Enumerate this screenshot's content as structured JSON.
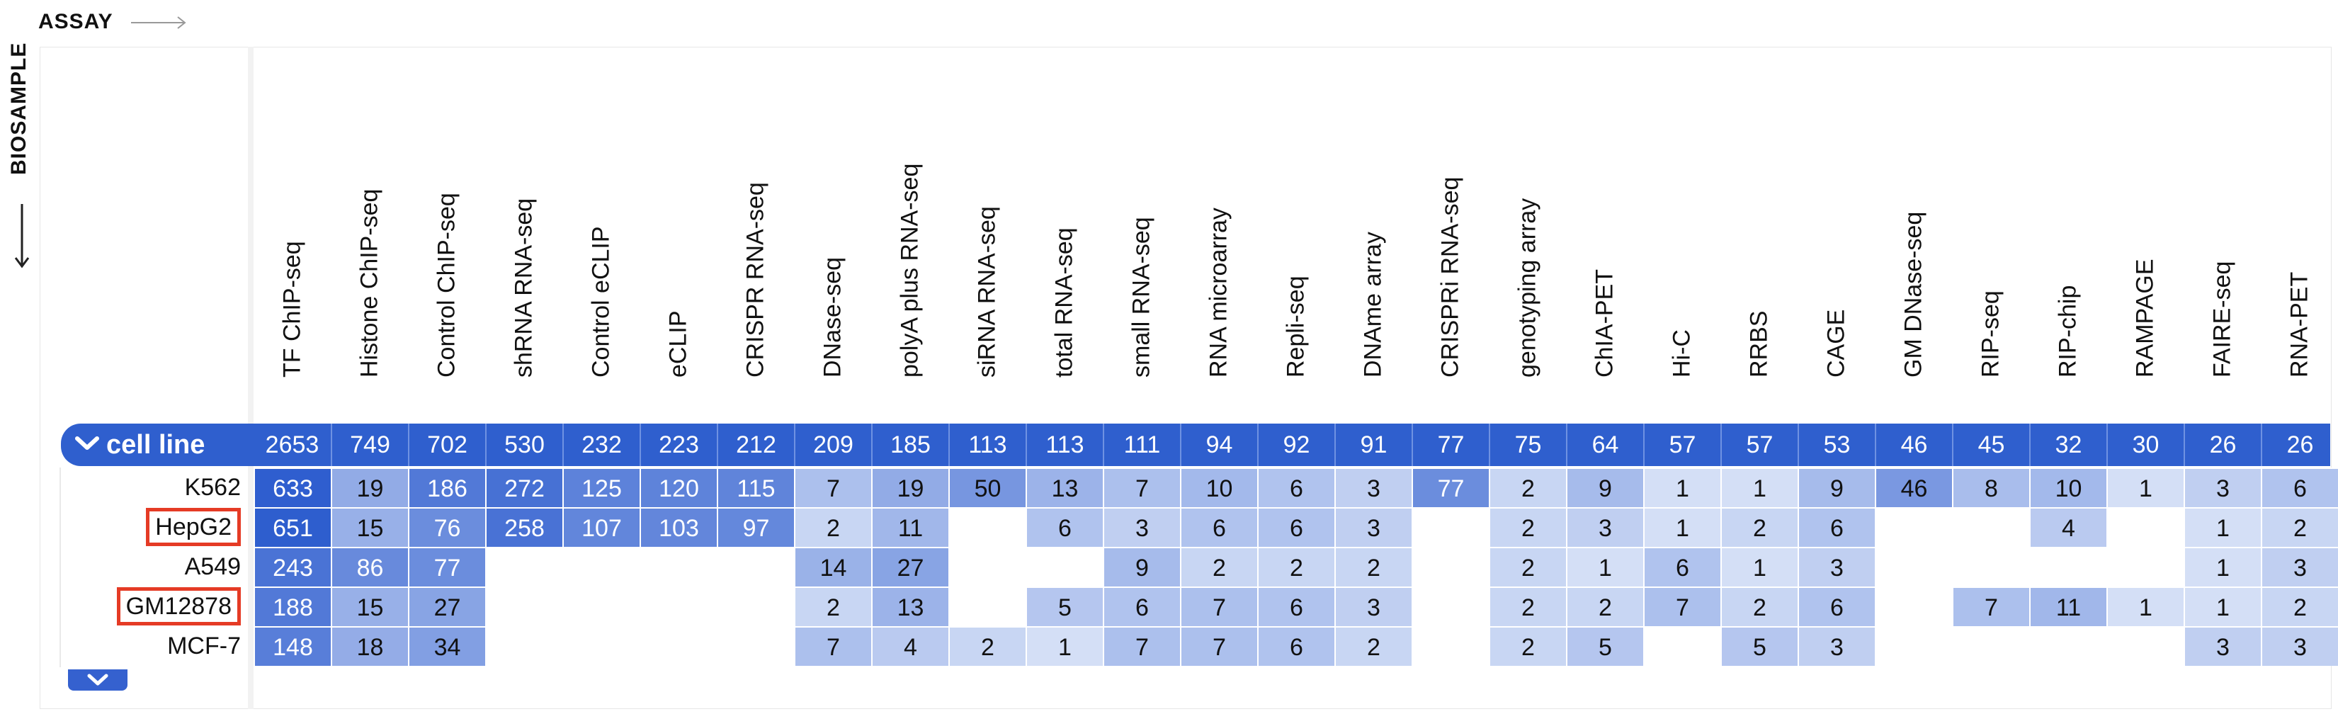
{
  "axes": {
    "assay_label": "ASSAY",
    "biosample_label": "BIOSAMPLE"
  },
  "group": {
    "label": "cell line"
  },
  "columns": [
    {
      "name": "TF ChIP-seq",
      "total": "2653"
    },
    {
      "name": "Histone ChIP-seq",
      "total": "749"
    },
    {
      "name": "Control ChIP-seq",
      "total": "702"
    },
    {
      "name": "shRNA RNA-seq",
      "total": "530"
    },
    {
      "name": "Control eCLIP",
      "total": "232"
    },
    {
      "name": "eCLIP",
      "total": "223"
    },
    {
      "name": "CRISPR RNA-seq",
      "total": "212"
    },
    {
      "name": "DNase-seq",
      "total": "209"
    },
    {
      "name": "polyA plus RNA-seq",
      "total": "185"
    },
    {
      "name": "siRNA RNA-seq",
      "total": "113"
    },
    {
      "name": "total RNA-seq",
      "total": "113"
    },
    {
      "name": "small RNA-seq",
      "total": "111"
    },
    {
      "name": "RNA microarray",
      "total": "94"
    },
    {
      "name": "Repli-seq",
      "total": "92"
    },
    {
      "name": "DNAme array",
      "total": "91"
    },
    {
      "name": "CRISPRi RNA-seq",
      "total": "77"
    },
    {
      "name": "genotyping array",
      "total": "75"
    },
    {
      "name": "ChIA-PET",
      "total": "64"
    },
    {
      "name": "Hi-C",
      "total": "57"
    },
    {
      "name": "RRBS",
      "total": "57"
    },
    {
      "name": "CAGE",
      "total": "53"
    },
    {
      "name": "GM DNase-seq",
      "total": "46"
    },
    {
      "name": "RIP-seq",
      "total": "45"
    },
    {
      "name": "RIP-chip",
      "total": "32"
    },
    {
      "name": "RAMPAGE",
      "total": "30"
    },
    {
      "name": "FAIRE-seq",
      "total": "26"
    },
    {
      "name": "RNA-PET",
      "total": "26"
    }
  ],
  "rows": [
    {
      "name": "K562",
      "highlighted": false,
      "values": [
        "633",
        "19",
        "186",
        "272",
        "125",
        "120",
        "115",
        "7",
        "19",
        "50",
        "13",
        "7",
        "10",
        "6",
        "3",
        "77",
        "2",
        "9",
        "1",
        "1",
        "9",
        "46",
        "8",
        "10",
        "1",
        "3",
        "6"
      ]
    },
    {
      "name": "HepG2",
      "highlighted": true,
      "values": [
        "651",
        "15",
        "76",
        "258",
        "107",
        "103",
        "97",
        "2",
        "11",
        "",
        "6",
        "3",
        "6",
        "6",
        "3",
        "",
        "2",
        "3",
        "1",
        "2",
        "6",
        "",
        "",
        "4",
        "",
        "1",
        "2"
      ]
    },
    {
      "name": "A549",
      "highlighted": false,
      "values": [
        "243",
        "86",
        "77",
        "",
        "",
        "",
        "",
        "14",
        "27",
        "",
        "",
        "9",
        "2",
        "2",
        "2",
        "",
        "2",
        "1",
        "6",
        "1",
        "3",
        "",
        "",
        "",
        "",
        "1",
        "3"
      ]
    },
    {
      "name": "GM12878",
      "highlighted": true,
      "values": [
        "188",
        "15",
        "27",
        "",
        "",
        "",
        "",
        "2",
        "13",
        "",
        "5",
        "6",
        "7",
        "6",
        "3",
        "",
        "2",
        "2",
        "7",
        "2",
        "6",
        "",
        "7",
        "11",
        "1",
        "1",
        "2"
      ]
    },
    {
      "name": "MCF-7",
      "highlighted": false,
      "values": [
        "148",
        "18",
        "34",
        "",
        "",
        "",
        "",
        "7",
        "4",
        "2",
        "1",
        "7",
        "7",
        "6",
        "2",
        "",
        "2",
        "5",
        "",
        "5",
        "3",
        "",
        "",
        "",
        "",
        "3",
        "3"
      ]
    }
  ]
}
